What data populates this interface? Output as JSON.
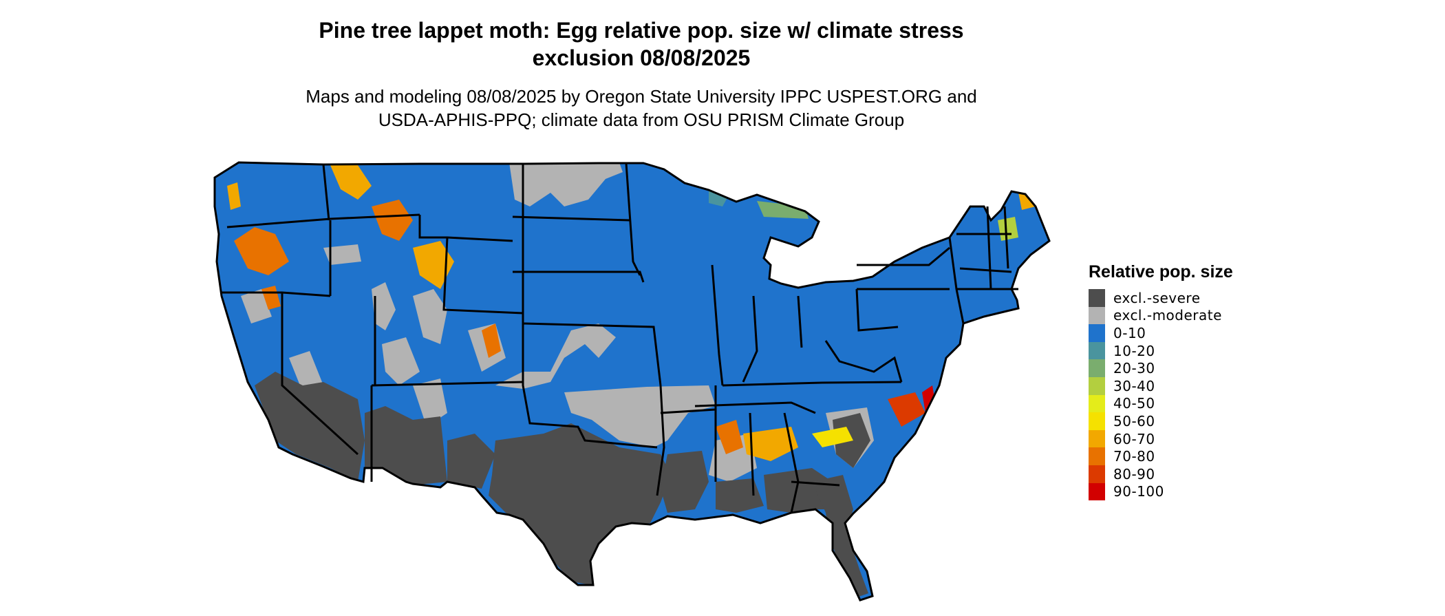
{
  "title": {
    "line1": "Pine tree lappet moth: Egg relative pop. size w/ climate stress",
    "line2": "exclusion 08/08/2025"
  },
  "subtitle": {
    "line1": "Maps and modeling 08/08/2025 by Oregon State University IPPC USPEST.ORG and",
    "line2": "USDA-APHIS-PPQ; climate data from OSU PRISM Climate Group"
  },
  "legend": {
    "title": "Relative pop. size",
    "items": [
      {
        "label": "excl.-severe",
        "color": "#4d4d4d"
      },
      {
        "label": "excl.-moderate",
        "color": "#b3b3b3"
      },
      {
        "label": "0-10",
        "color": "#1f73cc"
      },
      {
        "label": "10-20",
        "color": "#4a949e"
      },
      {
        "label": "20-30",
        "color": "#7aad6e"
      },
      {
        "label": "30-40",
        "color": "#b3cf3f"
      },
      {
        "label": "40-50",
        "color": "#e4ec1a"
      },
      {
        "label": "50-60",
        "color": "#f5e100"
      },
      {
        "label": "60-70",
        "color": "#f2a800"
      },
      {
        "label": "70-80",
        "color": "#e87200"
      },
      {
        "label": "80-90",
        "color": "#dc3a00"
      },
      {
        "label": "90-100",
        "color": "#d20000"
      }
    ]
  }
}
